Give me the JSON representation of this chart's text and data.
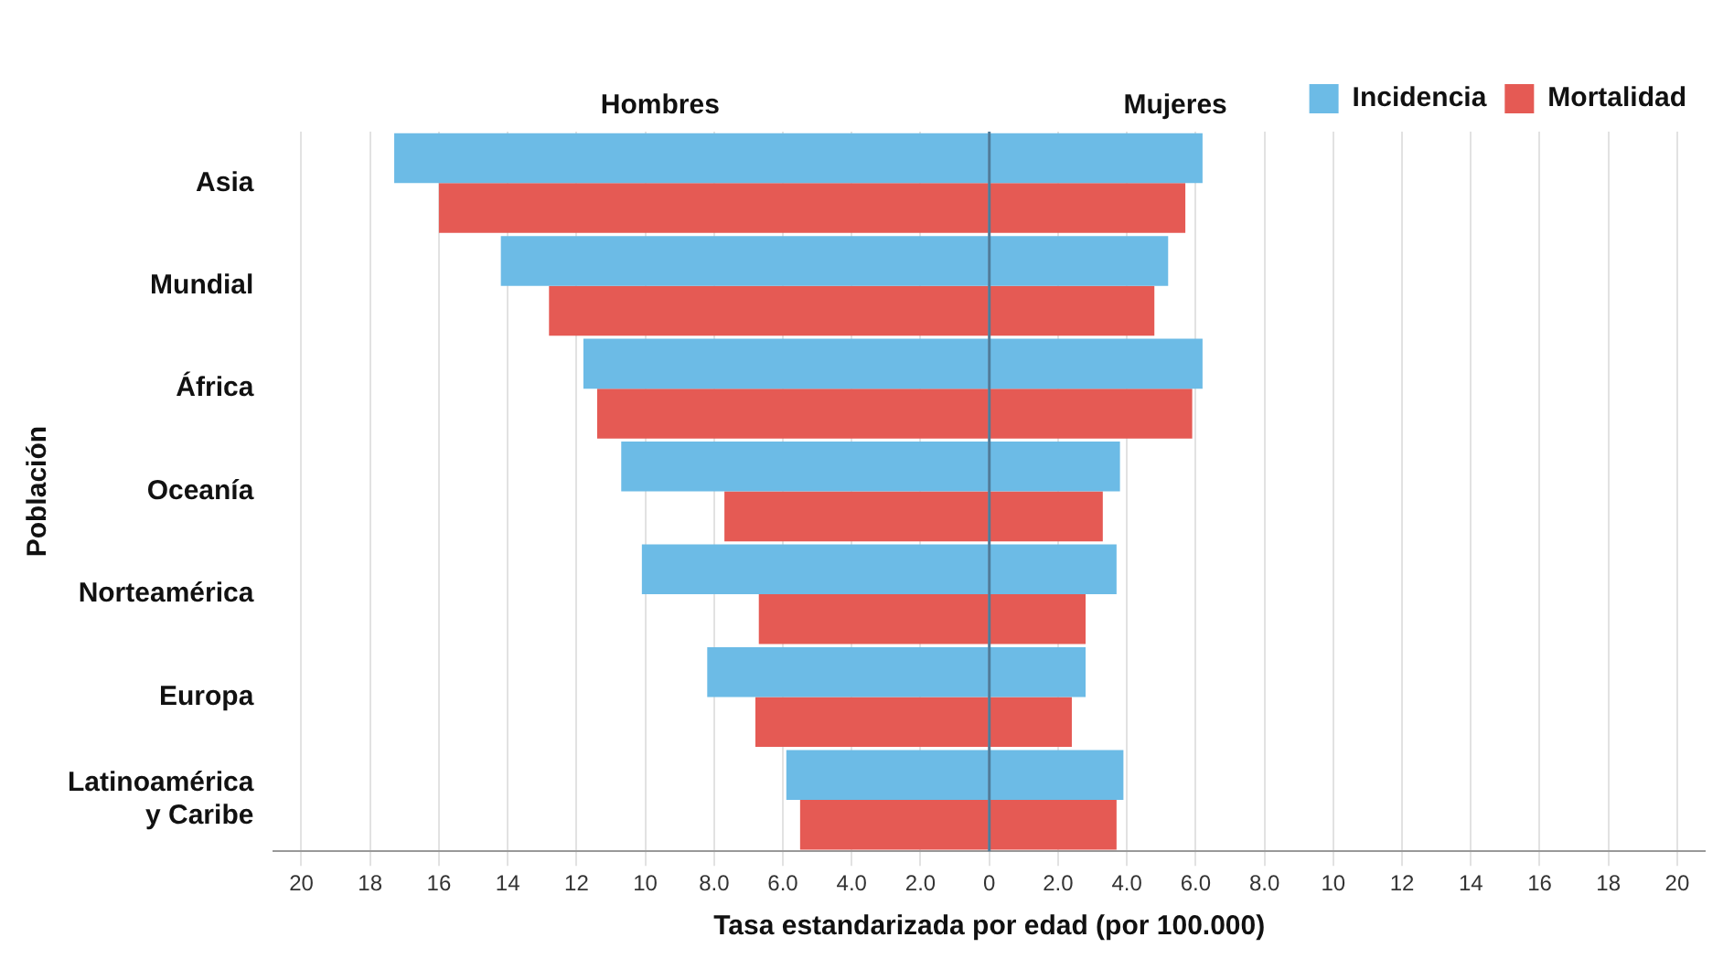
{
  "chart_data": {
    "type": "bar",
    "orientation": "horizontal",
    "ref_lines": [
      {
        "axis": "x",
        "value": 0,
        "color": "#4f7b9a"
      }
    ],
    "categories": [
      "Asia",
      "Mundial",
      "África",
      "Oceanía",
      "Norteamérica",
      "Europa",
      "Latinoamérica\ny Caribe"
    ],
    "series": [
      {
        "name": "Incidencia",
        "color": "#6cbbe6",
        "values": [
          -17.3,
          -14.2,
          -11.8,
          -10.7,
          -10.1,
          -8.2,
          -5.9
        ],
        "base": [
          0,
          0,
          0,
          0,
          0,
          0,
          0
        ]
      },
      {
        "name": "Mortalidad",
        "color": "#e55a54",
        "values": [
          -16.0,
          -12.8,
          -11.4,
          -7.7,
          -6.7,
          -6.8,
          -5.5
        ],
        "base": [
          0,
          0,
          0,
          0,
          0,
          0,
          0
        ]
      },
      {
        "color": "#6cbbe6",
        "values": [
          6.2,
          5.2,
          6.2,
          3.8,
          3.7,
          2.8,
          3.9
        ],
        "base": [
          0,
          0,
          0,
          0,
          0,
          0,
          0
        ]
      },
      {
        "color": "#e55a54",
        "values": [
          5.7,
          4.8,
          5.9,
          3.3,
          2.8,
          2.4,
          3.7
        ],
        "base": [
          0,
          0,
          0,
          0,
          0,
          0,
          0
        ]
      }
    ],
    "xlim": [
      -20.8,
      20.8
    ],
    "xticks": [
      {
        "value": -20,
        "label": "20"
      },
      {
        "value": -18,
        "label": "18"
      },
      {
        "value": -16,
        "label": "16"
      },
      {
        "value": -14,
        "label": "14"
      },
      {
        "value": -12,
        "label": "12"
      },
      {
        "value": -10,
        "label": "10"
      },
      {
        "value": -8,
        "label": "8.0"
      },
      {
        "value": -6,
        "label": "6.0"
      },
      {
        "value": -4,
        "label": "4.0"
      },
      {
        "value": -2,
        "label": "2.0"
      },
      {
        "value": 0,
        "label": "0"
      },
      {
        "value": 2,
        "label": "2.0"
      },
      {
        "value": 4,
        "label": "4.0"
      },
      {
        "value": 6,
        "label": "6.0"
      },
      {
        "value": 8,
        "label": "8.0"
      },
      {
        "value": 10,
        "label": "10"
      },
      {
        "value": 12,
        "label": "12"
      },
      {
        "value": 14,
        "label": "14"
      },
      {
        "value": 16,
        "label": "16"
      },
      {
        "value": 18,
        "label": "18"
      },
      {
        "value": 20,
        "label": "20"
      }
    ],
    "xlabel": "Tasa estandarizada por edad (por 100.000)",
    "ylabel": "Población",
    "annotations": [
      "Hombres",
      "Mujeres"
    ],
    "grid": "x",
    "legend": "top right"
  }
}
